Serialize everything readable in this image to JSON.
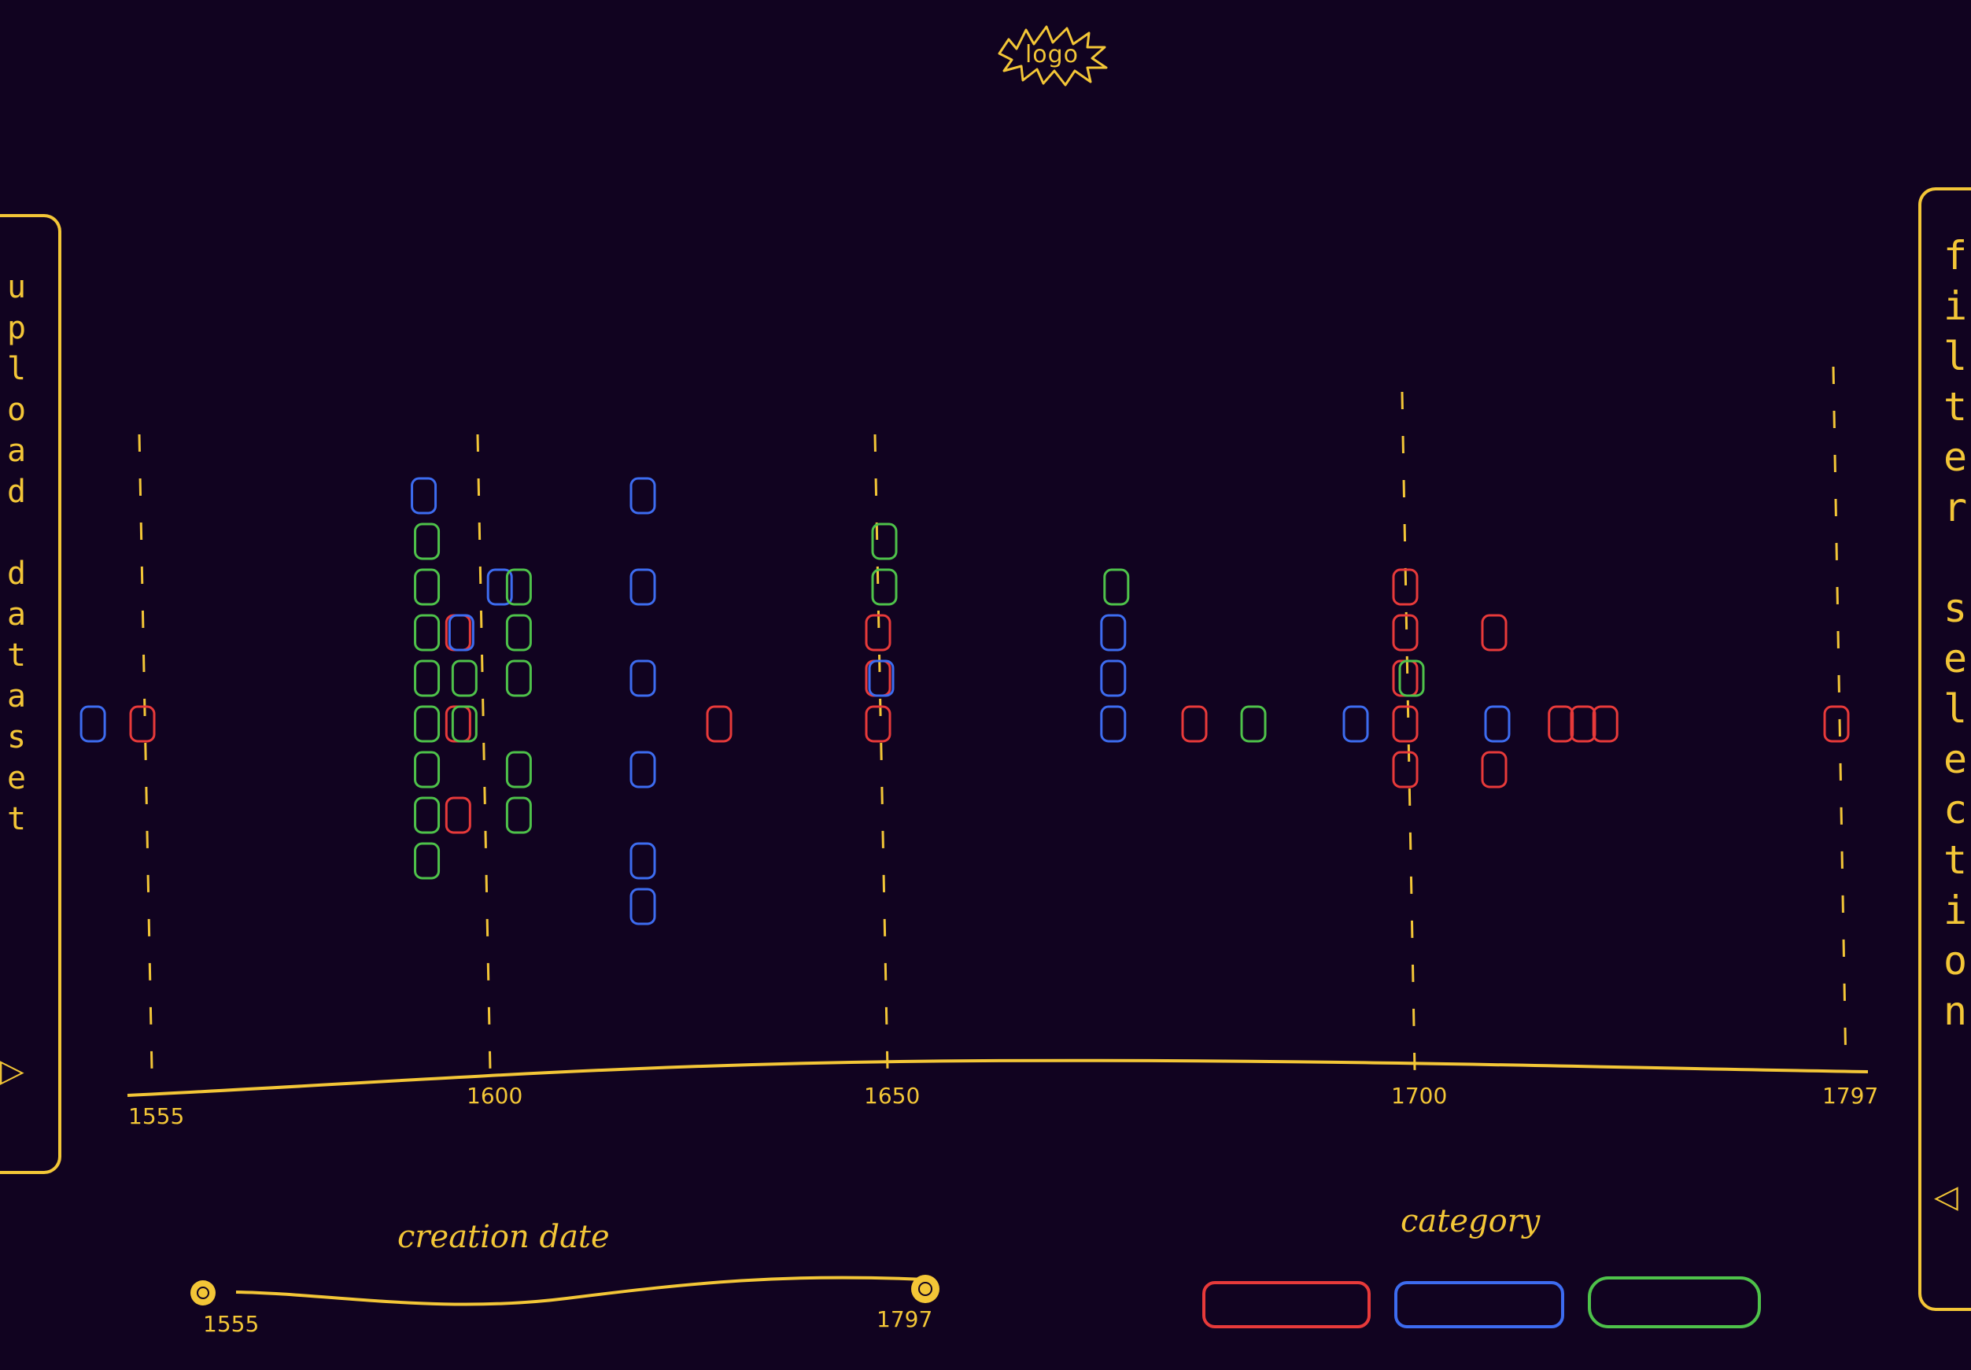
{
  "logo": {
    "text": "logo"
  },
  "left_panel": {
    "label": "upload dataset",
    "icon": "triangle-right-icon"
  },
  "right_panel": {
    "label": "filter selection",
    "icon": "triangle-left-icon"
  },
  "colors": {
    "background": "#110320",
    "accent": "#f3c637",
    "red": "#e83a3a",
    "blue": "#3d6cf0",
    "green": "#4ec24a"
  },
  "chart_data": {
    "type": "scatter",
    "x_ticks": [
      "1555",
      "1600",
      "1650",
      "1700",
      "1797"
    ],
    "series": [
      {
        "color": "#e83a3a",
        "points": [
          [
            1555,
            0
          ],
          [
            1597,
            2
          ],
          [
            1597,
            0
          ],
          [
            1597,
            -2
          ],
          [
            1630,
            0
          ],
          [
            1650,
            2
          ],
          [
            1650,
            1
          ],
          [
            1650,
            0
          ],
          [
            1680,
            0
          ],
          [
            1700,
            3
          ],
          [
            1700,
            2
          ],
          [
            1700,
            1
          ],
          [
            1700,
            0
          ],
          [
            1700,
            -1
          ],
          [
            1720,
            2
          ],
          [
            1720,
            -1
          ],
          [
            1735,
            0
          ],
          [
            1740,
            0
          ],
          [
            1745,
            0
          ],
          [
            1797,
            0
          ]
        ]
      },
      {
        "color": "#3d6cf0",
        "points": [
          [
            1548,
            0
          ],
          [
            1592,
            5
          ],
          [
            1597,
            2
          ],
          [
            1602,
            3
          ],
          [
            1620,
            5
          ],
          [
            1620,
            3
          ],
          [
            1620,
            1
          ],
          [
            1620,
            -1
          ],
          [
            1620,
            -3
          ],
          [
            1620,
            -4
          ],
          [
            1650,
            1
          ],
          [
            1672,
            2
          ],
          [
            1672,
            1
          ],
          [
            1672,
            0
          ],
          [
            1695,
            0
          ],
          [
            1720,
            0
          ]
        ]
      },
      {
        "color": "#4ec24a",
        "points": [
          [
            1592,
            4
          ],
          [
            1592,
            3
          ],
          [
            1592,
            2
          ],
          [
            1592,
            1
          ],
          [
            1592,
            0
          ],
          [
            1592,
            -1
          ],
          [
            1592,
            -2
          ],
          [
            1592,
            -3
          ],
          [
            1597,
            1
          ],
          [
            1597,
            0
          ],
          [
            1604,
            3
          ],
          [
            1604,
            2
          ],
          [
            1604,
            1
          ],
          [
            1604,
            -1
          ],
          [
            1604,
            -2
          ],
          [
            1650,
            4
          ],
          [
            1650,
            3
          ],
          [
            1672,
            3
          ],
          [
            1685,
            0
          ],
          [
            1700,
            1
          ]
        ]
      }
    ]
  },
  "labels": {
    "creation_date": "creation date",
    "category": "category"
  },
  "date_slider": {
    "min": "1555",
    "max": "1797"
  }
}
